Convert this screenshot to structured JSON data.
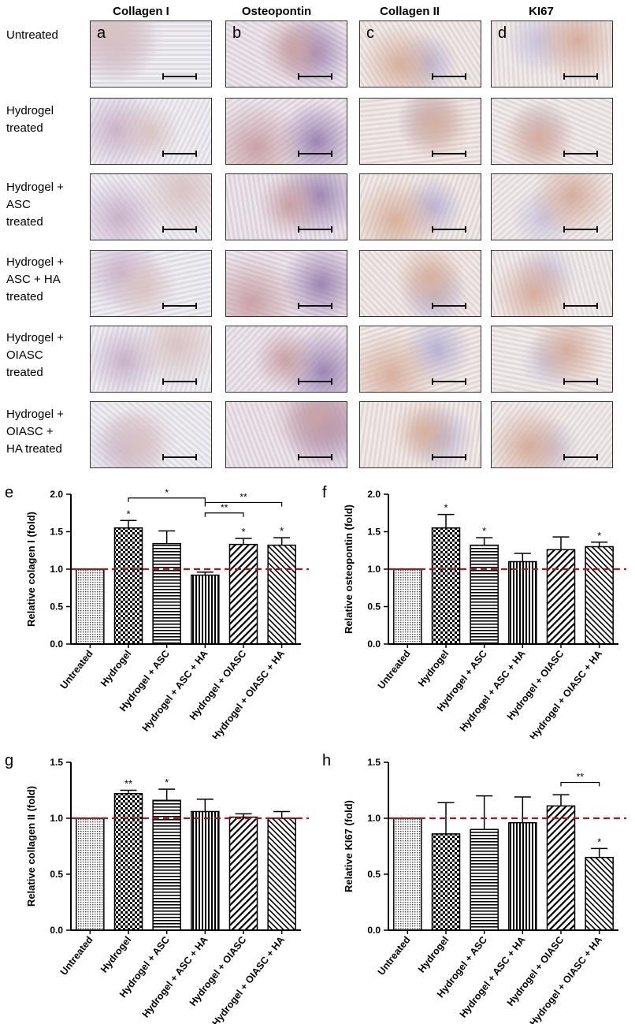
{
  "micrographs": {
    "columns": [
      "Collagen I",
      "Osteopontin",
      "Collagen II",
      "KI67"
    ],
    "panel_letters": [
      "a",
      "b",
      "c",
      "d"
    ],
    "rows": [
      [
        "Untreated"
      ],
      [
        "Hydrogel",
        "treated"
      ],
      [
        "Hydrogel +",
        "ASC",
        "treated"
      ],
      [
        "Hydrogel +",
        "ASC + HA",
        "treated"
      ],
      [
        "Hydrogel +",
        "OIASC",
        "treated"
      ],
      [
        "Hydrogel +",
        "OIASC +",
        "HA treated"
      ]
    ]
  },
  "chart_data": [
    {
      "panel": "e",
      "type": "bar",
      "categories": [
        "Untreated",
        "Hydrogel",
        "Hydrogel + ASC",
        "Hydrogel + ASC + HA",
        "Hydrogel + OIASC",
        "Hydrogel + OIASC + HA"
      ],
      "values": [
        1.0,
        1.55,
        1.34,
        0.92,
        1.33,
        1.32
      ],
      "errors": [
        0.0,
        0.1,
        0.17,
        0.04,
        0.08,
        0.1
      ],
      "significance": [
        "",
        "*",
        "",
        "",
        "*",
        "*"
      ],
      "brackets": [
        {
          "from": 1,
          "to": 3,
          "label": "*",
          "y": 1.95
        },
        {
          "from": 3,
          "to": 4,
          "label": "**",
          "y": 1.75
        },
        {
          "from": 3,
          "to": 5,
          "label": "**",
          "y": 1.89
        }
      ],
      "ylabel": "Relative colagen I (fold)",
      "ylim": [
        0,
        2.0
      ],
      "yticks": [
        "0.0",
        "0.5",
        "1.0",
        "1.5",
        "2.0"
      ],
      "reference_line": 1.0
    },
    {
      "panel": "f",
      "type": "bar",
      "categories": [
        "Untreated",
        "Hydrogel",
        "Hydrogel + ASC",
        "Hydrogel + ASC + HA",
        "Hydrogel + OIASC",
        "Hydrogel + OIASC + HA"
      ],
      "values": [
        1.0,
        1.55,
        1.32,
        1.1,
        1.26,
        1.3
      ],
      "errors": [
        0.0,
        0.18,
        0.1,
        0.11,
        0.17,
        0.06
      ],
      "significance": [
        "",
        "*",
        "*",
        "",
        "",
        "*"
      ],
      "brackets": [],
      "ylabel": "Relative osteopontin (fold)",
      "ylim": [
        0,
        2.0
      ],
      "yticks": [
        "0.0",
        "0.5",
        "1.0",
        "1.5",
        "2.0"
      ],
      "reference_line": 1.0
    },
    {
      "panel": "g",
      "type": "bar",
      "categories": [
        "Untreated",
        "Hydrogel",
        "Hydrogel + ASC",
        "Hydrogel + ASC + HA",
        "Hydrogel + OIASC",
        "Hydrogel + OIASC + HA"
      ],
      "values": [
        1.0,
        1.22,
        1.16,
        1.06,
        1.01,
        1.0
      ],
      "errors": [
        0.0,
        0.03,
        0.1,
        0.11,
        0.03,
        0.06
      ],
      "significance": [
        "",
        "**",
        "*",
        "",
        "",
        ""
      ],
      "brackets": [],
      "ylabel": "Relative collagen II (fold)",
      "ylim": [
        0,
        1.5
      ],
      "yticks": [
        "0.0",
        "0.5",
        "1.0",
        "1.5"
      ],
      "reference_line": 1.0
    },
    {
      "panel": "h",
      "type": "bar",
      "categories": [
        "Untreated",
        "Hydrogel",
        "Hydrogel + ASC",
        "Hydrogel + ASC + HA",
        "Hydrogel + OIASC",
        "Hydrogel + OIASC + HA"
      ],
      "values": [
        1.0,
        0.86,
        0.9,
        0.96,
        1.11,
        0.65
      ],
      "errors": [
        0.0,
        0.28,
        0.3,
        0.23,
        0.1,
        0.08
      ],
      "significance": [
        "",
        "",
        "",
        "",
        "",
        "*"
      ],
      "brackets": [
        {
          "from": 4,
          "to": 5,
          "label": "**",
          "y": 1.32
        }
      ],
      "ylabel": "Relative KI67 (fold)",
      "ylim": [
        0,
        1.5
      ],
      "yticks": [
        "0.0",
        "0.5",
        "1.0",
        "1.5"
      ],
      "reference_line": 1.0
    }
  ]
}
